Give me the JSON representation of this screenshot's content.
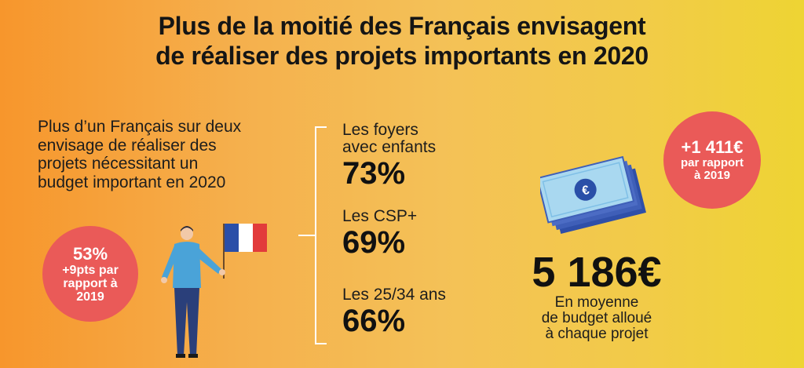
{
  "title": {
    "line1": "Plus de la moitié des Français envisagent",
    "line2": "de réaliser des projets importants en 2020"
  },
  "intro": {
    "line1": "Plus d’un Français sur deux",
    "line2": "envisage de réaliser des",
    "line3": "projets nécessitant un",
    "line4": "budget important en 2020"
  },
  "left_badge": {
    "percent": "53%",
    "line1": "+9pts par",
    "line2": "rapport à",
    "line3": "2019"
  },
  "stats": [
    {
      "label_line1": "Les foyers",
      "label_line2": "avec enfants",
      "value": "73%"
    },
    {
      "label_line1": "Les CSP+",
      "label_line2": "",
      "value": "69%"
    },
    {
      "label_line1": "Les 25/34 ans",
      "label_line2": "",
      "value": "66%"
    }
  ],
  "budget": {
    "amount": "5 186€",
    "line1": "En moyenne",
    "line2": "de budget alloué",
    "line3": "à chaque projet",
    "currency_symbol": "€"
  },
  "right_badge": {
    "amount": "+1 411€",
    "line1": "par rapport",
    "line2": "à 2019"
  },
  "colors": {
    "badge": "#ea5a58",
    "flag_blue": "#2a4fa8",
    "flag_red": "#e23b3b",
    "banknote_front": "#a9d8f0",
    "banknote_back": "#3f5fb8"
  }
}
